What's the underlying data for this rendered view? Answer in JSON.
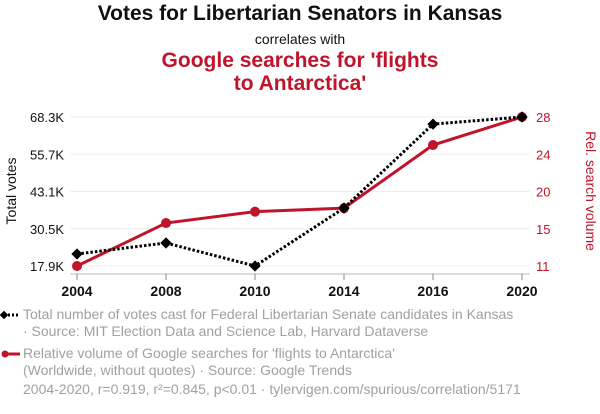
{
  "header": {
    "title": "Votes for Libertarian Senators in Kansas",
    "subtitle": "correlates with",
    "title2_line1": "Google searches for 'flights",
    "title2_line2": "to Antarctica'"
  },
  "colors": {
    "series1": "#000000",
    "series2": "#c0142b",
    "grid": "#eeeeee",
    "legend_text": "#a0a0a0"
  },
  "chart_data": {
    "type": "line",
    "title": "Votes for Libertarian Senators in Kansas correlates with Google searches for 'flights to Antarctica'",
    "x": [
      "2004",
      "2008",
      "2010",
      "2014",
      "2016",
      "2020"
    ],
    "xlabel": "",
    "grid": true,
    "legend_position": "bottom",
    "series": [
      {
        "name": "Total number of votes cast for Federal Libertarian Senate candidates in Kansas",
        "axis": "left",
        "style": "dotted-diamond",
        "values": [
          21950,
          25700,
          17900,
          37500,
          65900,
          68300
        ]
      },
      {
        "name": "Relative volume of Google searches for 'flights to Antarctica'",
        "axis": "right",
        "style": "solid-circle",
        "values": [
          11,
          15.9,
          17.2,
          17.6,
          24.8,
          28
        ]
      }
    ],
    "y_left": {
      "label": "Total votes",
      "ticks": [
        "17.9K",
        "30.5K",
        "43.1K",
        "55.7K",
        "68.3K"
      ],
      "range": [
        17900,
        68300
      ]
    },
    "y_right": {
      "label": "Rel. search volume",
      "ticks": [
        "11",
        "15",
        "20",
        "24",
        "28"
      ],
      "range": [
        11,
        28
      ]
    }
  },
  "legend": {
    "item1_line1": "Total number of votes cast for Federal Libertarian Senate candidates in Kansas",
    "item1_line2": "· Source: MIT Election Data and Science Lab, Harvard Dataverse",
    "item2_line1": "Relative volume of Google searches for 'flights to Antarctica'",
    "item2_line2": "(Worldwide, without quotes) · Source: Google Trends"
  },
  "footer": {
    "stats": "2004-2020, r=0.919, r²=0.845, p<0.01 · tylervigen.com/spurious/correlation/5171"
  }
}
